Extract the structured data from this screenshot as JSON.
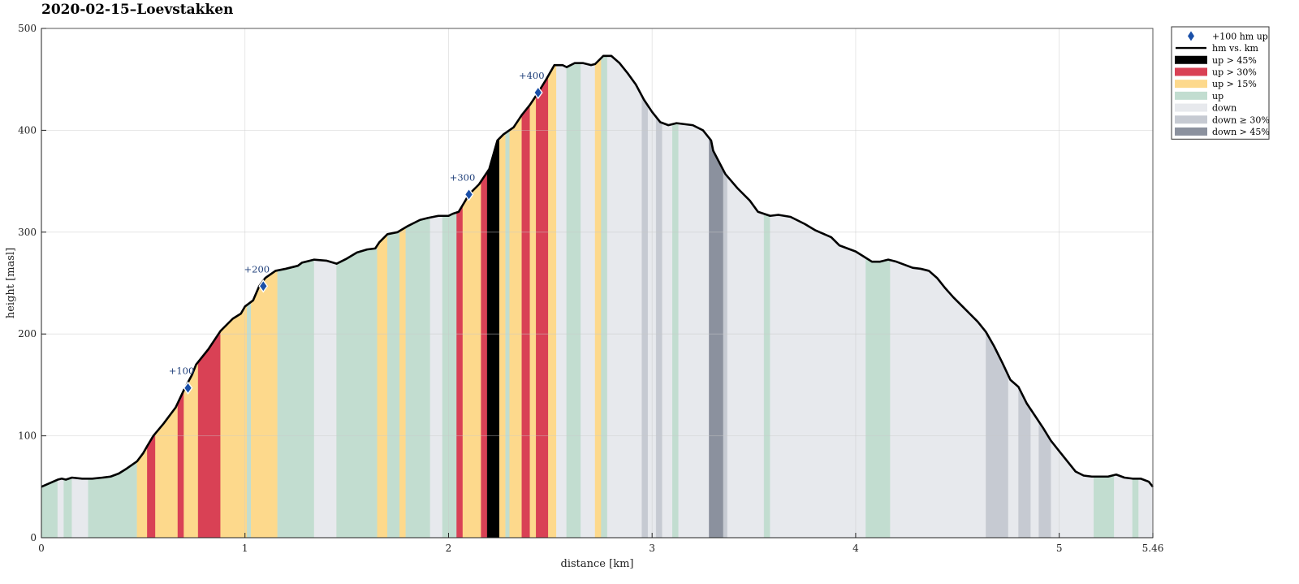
{
  "chart_data": {
    "type": "area",
    "title": "2020-02-15–Loevstakken",
    "xlabel": "distance [km]",
    "ylabel": "height [masl]",
    "xlim": [
      0,
      5.46
    ],
    "ylim": [
      0,
      500
    ],
    "x_ticks": [
      0,
      1,
      2,
      3,
      4,
      5,
      5.46
    ],
    "x_tick_labels": [
      "0",
      "1",
      "2",
      "3",
      "4",
      "5",
      "5.46"
    ],
    "y_ticks": [
      0,
      100,
      200,
      300,
      400,
      500
    ],
    "y_tick_labels": [
      "0",
      "100",
      "200",
      "300",
      "400",
      "500"
    ],
    "grid": true,
    "legend_position": "outside top-right",
    "colors": {
      "up45": "#000000",
      "up30": "#d94155",
      "up15": "#fdd98c",
      "up": "#c2ddd0",
      "down": "#e7e9ed",
      "down30": "#c6cad2",
      "down45": "#8b919e",
      "line": "#000000",
      "marker": "#1a4fa8"
    },
    "legend": [
      {
        "key": "marker",
        "label": "+100 hm up"
      },
      {
        "key": "line",
        "label": "hm vs. km"
      },
      {
        "key": "up45",
        "label": "up > 45%"
      },
      {
        "key": "up30",
        "label": "up > 30%"
      },
      {
        "key": "up15",
        "label": "up > 15%"
      },
      {
        "key": "up",
        "label": "up"
      },
      {
        "key": "down",
        "label": "down"
      },
      {
        "key": "down30",
        "label": "down ≥ 30%"
      },
      {
        "key": "down45",
        "label": "down > 45%"
      }
    ],
    "profile": [
      [
        0,
        50
      ],
      [
        0.08,
        57
      ],
      [
        0.1,
        58
      ],
      [
        0.12,
        57
      ],
      [
        0.15,
        59
      ],
      [
        0.2,
        58
      ],
      [
        0.25,
        58
      ],
      [
        0.3,
        59
      ],
      [
        0.34,
        60
      ],
      [
        0.38,
        63
      ],
      [
        0.42,
        68
      ],
      [
        0.47,
        75
      ],
      [
        0.5,
        83
      ],
      [
        0.52,
        90
      ],
      [
        0.55,
        100
      ],
      [
        0.6,
        112
      ],
      [
        0.66,
        128
      ],
      [
        0.7,
        145
      ],
      [
        0.74,
        160
      ],
      [
        0.76,
        170
      ],
      [
        0.82,
        185
      ],
      [
        0.88,
        203
      ],
      [
        0.94,
        215
      ],
      [
        0.98,
        220
      ],
      [
        1.0,
        227
      ],
      [
        1.04,
        233
      ],
      [
        1.07,
        247
      ],
      [
        1.1,
        255
      ],
      [
        1.15,
        262
      ],
      [
        1.2,
        264
      ],
      [
        1.26,
        267
      ],
      [
        1.28,
        270
      ],
      [
        1.32,
        272
      ],
      [
        1.34,
        273
      ],
      [
        1.4,
        272
      ],
      [
        1.45,
        269
      ],
      [
        1.5,
        274
      ],
      [
        1.55,
        280
      ],
      [
        1.6,
        283
      ],
      [
        1.64,
        284
      ],
      [
        1.66,
        290
      ],
      [
        1.7,
        298
      ],
      [
        1.75,
        300
      ],
      [
        1.8,
        306
      ],
      [
        1.86,
        312
      ],
      [
        1.9,
        314
      ],
      [
        1.95,
        316
      ],
      [
        2.0,
        316
      ],
      [
        2.02,
        318
      ],
      [
        2.05,
        320
      ],
      [
        2.08,
        330
      ],
      [
        2.1,
        337
      ],
      [
        2.15,
        347
      ],
      [
        2.2,
        362
      ],
      [
        2.24,
        390
      ],
      [
        2.27,
        396
      ],
      [
        2.32,
        403
      ],
      [
        2.36,
        415
      ],
      [
        2.4,
        425
      ],
      [
        2.44,
        437
      ],
      [
        2.48,
        450
      ],
      [
        2.52,
        464
      ],
      [
        2.56,
        464
      ],
      [
        2.58,
        462
      ],
      [
        2.62,
        466
      ],
      [
        2.66,
        466
      ],
      [
        2.7,
        464
      ],
      [
        2.72,
        465
      ],
      [
        2.76,
        473
      ],
      [
        2.8,
        473
      ],
      [
        2.84,
        466
      ],
      [
        2.88,
        456
      ],
      [
        2.92,
        445
      ],
      [
        2.96,
        430
      ],
      [
        3.0,
        418
      ],
      [
        3.04,
        408
      ],
      [
        3.08,
        405
      ],
      [
        3.12,
        407
      ],
      [
        3.2,
        405
      ],
      [
        3.25,
        400
      ],
      [
        3.29,
        390
      ],
      [
        3.3,
        380
      ],
      [
        3.36,
        357
      ],
      [
        3.42,
        343
      ],
      [
        3.48,
        331
      ],
      [
        3.52,
        320
      ],
      [
        3.58,
        316
      ],
      [
        3.62,
        317
      ],
      [
        3.68,
        315
      ],
      [
        3.75,
        308
      ],
      [
        3.8,
        302
      ],
      [
        3.88,
        295
      ],
      [
        3.92,
        287
      ],
      [
        3.96,
        284
      ],
      [
        4.0,
        281
      ],
      [
        4.04,
        276
      ],
      [
        4.08,
        271
      ],
      [
        4.12,
        271
      ],
      [
        4.16,
        273
      ],
      [
        4.2,
        271
      ],
      [
        4.24,
        268
      ],
      [
        4.28,
        265
      ],
      [
        4.32,
        264
      ],
      [
        4.36,
        262
      ],
      [
        4.4,
        255
      ],
      [
        4.44,
        245
      ],
      [
        4.48,
        236
      ],
      [
        4.52,
        228
      ],
      [
        4.56,
        220
      ],
      [
        4.6,
        212
      ],
      [
        4.64,
        202
      ],
      [
        4.68,
        188
      ],
      [
        4.72,
        172
      ],
      [
        4.76,
        155
      ],
      [
        4.8,
        148
      ],
      [
        4.84,
        132
      ],
      [
        4.88,
        120
      ],
      [
        4.92,
        108
      ],
      [
        4.96,
        95
      ],
      [
        5.0,
        85
      ],
      [
        5.04,
        75
      ],
      [
        5.08,
        65
      ],
      [
        5.12,
        61
      ],
      [
        5.16,
        60
      ],
      [
        5.2,
        60
      ],
      [
        5.24,
        60
      ],
      [
        5.28,
        62
      ],
      [
        5.32,
        59
      ],
      [
        5.36,
        58
      ],
      [
        5.4,
        58
      ],
      [
        5.44,
        55
      ],
      [
        5.46,
        50
      ]
    ],
    "segments": [
      [
        0,
        0.08,
        "up"
      ],
      [
        0.08,
        0.11,
        "down"
      ],
      [
        0.11,
        0.15,
        "up"
      ],
      [
        0.15,
        0.23,
        "down"
      ],
      [
        0.23,
        0.47,
        "up"
      ],
      [
        0.47,
        0.52,
        "up15"
      ],
      [
        0.52,
        0.56,
        "up30"
      ],
      [
        0.56,
        0.67,
        "up15"
      ],
      [
        0.67,
        0.7,
        "up30"
      ],
      [
        0.7,
        0.77,
        "up15"
      ],
      [
        0.77,
        0.88,
        "up30"
      ],
      [
        0.88,
        1.01,
        "up15"
      ],
      [
        1.01,
        1.03,
        "up"
      ],
      [
        1.03,
        1.16,
        "up15"
      ],
      [
        1.16,
        1.34,
        "up"
      ],
      [
        1.34,
        1.45,
        "down"
      ],
      [
        1.45,
        1.65,
        "up"
      ],
      [
        1.65,
        1.7,
        "up15"
      ],
      [
        1.7,
        1.76,
        "up"
      ],
      [
        1.76,
        1.79,
        "up15"
      ],
      [
        1.79,
        1.91,
        "up"
      ],
      [
        1.91,
        1.97,
        "down"
      ],
      [
        1.97,
        2.04,
        "up"
      ],
      [
        2.04,
        2.07,
        "up30"
      ],
      [
        2.07,
        2.16,
        "up15"
      ],
      [
        2.16,
        2.19,
        "up30"
      ],
      [
        2.19,
        2.25,
        "up45"
      ],
      [
        2.25,
        2.28,
        "up15"
      ],
      [
        2.28,
        2.3,
        "up"
      ],
      [
        2.3,
        2.36,
        "up15"
      ],
      [
        2.36,
        2.4,
        "up30"
      ],
      [
        2.4,
        2.43,
        "up15"
      ],
      [
        2.43,
        2.49,
        "up30"
      ],
      [
        2.49,
        2.53,
        "up15"
      ],
      [
        2.53,
        2.58,
        "down"
      ],
      [
        2.58,
        2.65,
        "up"
      ],
      [
        2.65,
        2.72,
        "down"
      ],
      [
        2.72,
        2.75,
        "up15"
      ],
      [
        2.75,
        2.78,
        "up"
      ],
      [
        2.78,
        2.95,
        "down"
      ],
      [
        2.95,
        2.98,
        "down30"
      ],
      [
        2.98,
        3.02,
        "down"
      ],
      [
        3.02,
        3.05,
        "down30"
      ],
      [
        3.05,
        3.1,
        "down"
      ],
      [
        3.1,
        3.13,
        "up"
      ],
      [
        3.13,
        3.28,
        "down"
      ],
      [
        3.28,
        3.35,
        "down45"
      ],
      [
        3.35,
        3.37,
        "down30"
      ],
      [
        3.37,
        3.55,
        "down"
      ],
      [
        3.55,
        3.58,
        "up"
      ],
      [
        3.58,
        4.05,
        "down"
      ],
      [
        4.05,
        4.17,
        "up"
      ],
      [
        4.17,
        4.64,
        "down"
      ],
      [
        4.64,
        4.75,
        "down30"
      ],
      [
        4.75,
        4.8,
        "down"
      ],
      [
        4.8,
        4.86,
        "down30"
      ],
      [
        4.86,
        4.9,
        "down"
      ],
      [
        4.9,
        4.96,
        "down30"
      ],
      [
        4.96,
        5.17,
        "down"
      ],
      [
        5.17,
        5.27,
        "up"
      ],
      [
        5.27,
        5.36,
        "down"
      ],
      [
        5.36,
        5.39,
        "up"
      ],
      [
        5.39,
        5.46,
        "down"
      ]
    ],
    "markers": [
      {
        "label": "+100",
        "x": 0.72,
        "y": 147
      },
      {
        "label": "+200",
        "x": 1.09,
        "y": 247
      },
      {
        "label": "+300",
        "x": 2.1,
        "y": 337
      },
      {
        "label": "+400",
        "x": 2.44,
        "y": 437
      }
    ]
  }
}
